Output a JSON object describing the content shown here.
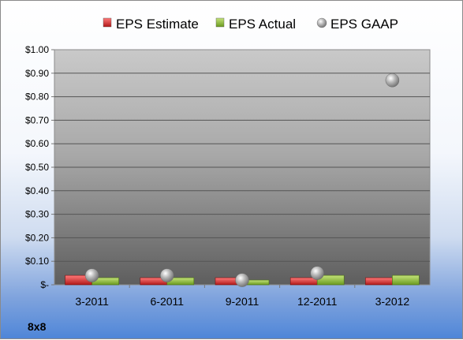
{
  "chart_data": {
    "type": "bar",
    "categories": [
      "3-2011",
      "6-2011",
      "9-2011",
      "12-2011",
      "3-2012"
    ],
    "series": [
      {
        "name": "EPS Estimate",
        "kind": "bar",
        "color": "#d83a3a",
        "values": [
          0.04,
          0.03,
          0.03,
          0.03,
          0.03
        ]
      },
      {
        "name": "EPS Actual",
        "kind": "bar",
        "color": "#8dbb3c",
        "values": [
          0.03,
          0.03,
          0.02,
          0.04,
          0.04
        ]
      },
      {
        "name": "EPS GAAP",
        "kind": "scatter",
        "color": "#9a9a9a",
        "values": [
          0.04,
          0.04,
          0.02,
          0.05,
          0.87
        ]
      }
    ],
    "yticks": [
      "$1.00",
      "$0.90",
      "$0.80",
      "$0.70",
      "$0.60",
      "$0.50",
      "$0.40",
      "$0.30",
      "$0.20",
      "$0.10",
      "$-"
    ],
    "ylim": [
      0,
      1.0
    ],
    "grid": true,
    "legend_position": "top"
  },
  "footer": {
    "company": "8x8"
  }
}
